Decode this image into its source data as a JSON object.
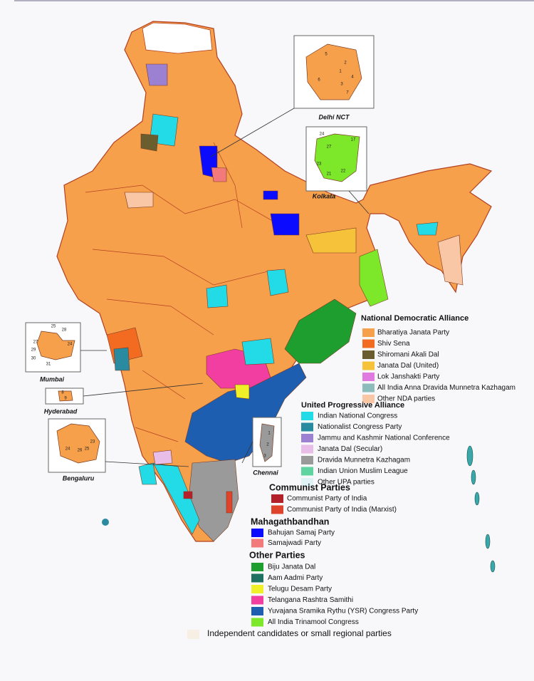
{
  "insets": [
    {
      "label": "Delhi NCT",
      "numbers": [
        "5",
        "1",
        "2",
        "4",
        "6",
        "3",
        "7"
      ]
    },
    {
      "label": "Kolkata",
      "numbers": [
        "24",
        "17",
        "27",
        "23",
        "21",
        "22"
      ]
    },
    {
      "label": "Mumbai",
      "numbers": [
        "25",
        "28",
        "27",
        "29",
        "24",
        "30",
        "31"
      ]
    },
    {
      "label": "Hyderabad",
      "numbers": [
        "8",
        "9"
      ]
    },
    {
      "label": "Bengaluru",
      "numbers": [
        "24",
        "26",
        "25",
        "23"
      ]
    },
    {
      "label": "Chennai",
      "numbers": [
        "1",
        "2",
        "3"
      ]
    }
  ],
  "legend": [
    {
      "title": "National Democratic Alliance",
      "items": [
        {
          "name": "Bharatiya Janata Party",
          "color": "#f7a04c"
        },
        {
          "name": "Shiv Sena",
          "color": "#f26b21"
        },
        {
          "name": "Shiromani Akali Dal",
          "color": "#6b5e2e"
        },
        {
          "name": "Janata Dal (United)",
          "color": "#f5c23a"
        },
        {
          "name": "Lok Janshakti Party",
          "color": "#e07ae0"
        },
        {
          "name": "All India Anna Dravida Munnetra Kazhagam",
          "color": "#8cbcbc"
        },
        {
          "name": "Other NDA parties",
          "color": "#f9c6a6"
        }
      ]
    },
    {
      "title": "United Progressive Alliance",
      "items": [
        {
          "name": "Indian National Congress",
          "color": "#22dbe6"
        },
        {
          "name": "Nationalist Congress Party",
          "color": "#2a8aa0"
        },
        {
          "name": "Jammu and Kashmir National Conference",
          "color": "#9c80d2"
        },
        {
          "name": "Janata Dal (Secular)",
          "color": "#e8bde8"
        },
        {
          "name": "Dravida Munnetra Kazhagam",
          "color": "#9a9a9a"
        },
        {
          "name": "Indian Union Muslim League",
          "color": "#5fd3a0"
        },
        {
          "name": "Other UPA parties",
          "color": "#dff3f6"
        }
      ]
    },
    {
      "title": "Communist Parties",
      "items": [
        {
          "name": "Communist Party of India",
          "color": "#b3202a"
        },
        {
          "name": "Communist Party of India (Marxist)",
          "color": "#e0432c"
        }
      ]
    },
    {
      "title": "Mahagathbandhan",
      "items": [
        {
          "name": "Bahujan Samaj Party",
          "color": "#0b0bff"
        },
        {
          "name": "Samajwadi Party",
          "color": "#f27a7a"
        }
      ]
    },
    {
      "title": "Other Parties",
      "items": [
        {
          "name": "Biju Janata Dal",
          "color": "#1e9e2e"
        },
        {
          "name": "Aam Aadmi Party",
          "color": "#1e7060"
        },
        {
          "name": "Telugu Desam Party",
          "color": "#f0f028"
        },
        {
          "name": "Telangana Rashtra Samithi",
          "color": "#f23ea0"
        },
        {
          "name": "Yuvajana Sramika Rythu (YSR) Congress Party",
          "color": "#1e5eb0"
        },
        {
          "name": "All India Trinamool Congress",
          "color": "#7de82a"
        }
      ]
    }
  ],
  "independent": {
    "name": "Independent candidates or small regional parties",
    "color": "#f7efe4"
  }
}
